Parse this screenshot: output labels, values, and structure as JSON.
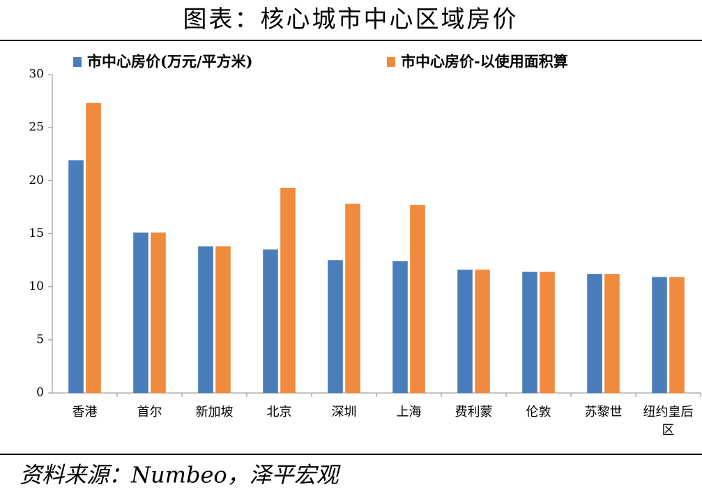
{
  "chart_data": {
    "type": "bar",
    "title": "图表：核心城市中心区域房价",
    "source": "资料来源：Numbeo，泽平宏观",
    "categories": [
      "香港",
      "首尔",
      "新加坡",
      "北京",
      "深圳",
      "上海",
      "费利蒙",
      "伦敦",
      "苏黎世",
      "纽约皇后区"
    ],
    "series": [
      {
        "name": "市中心房价(万元/平方米)",
        "color": "#4a7ebb",
        "values": [
          21.9,
          15.1,
          13.8,
          13.5,
          12.5,
          12.4,
          11.6,
          11.4,
          11.2,
          10.9
        ]
      },
      {
        "name": "市中心房价-以使用面积算",
        "color": "#f08a3c",
        "values": [
          27.3,
          15.1,
          13.8,
          19.3,
          17.8,
          17.7,
          11.6,
          11.4,
          11.2,
          10.9
        ]
      }
    ],
    "ylim": [
      0,
      30
    ],
    "yticks": [
      0,
      5,
      10,
      15,
      20,
      25,
      30
    ],
    "grid": false,
    "legend": "top"
  }
}
